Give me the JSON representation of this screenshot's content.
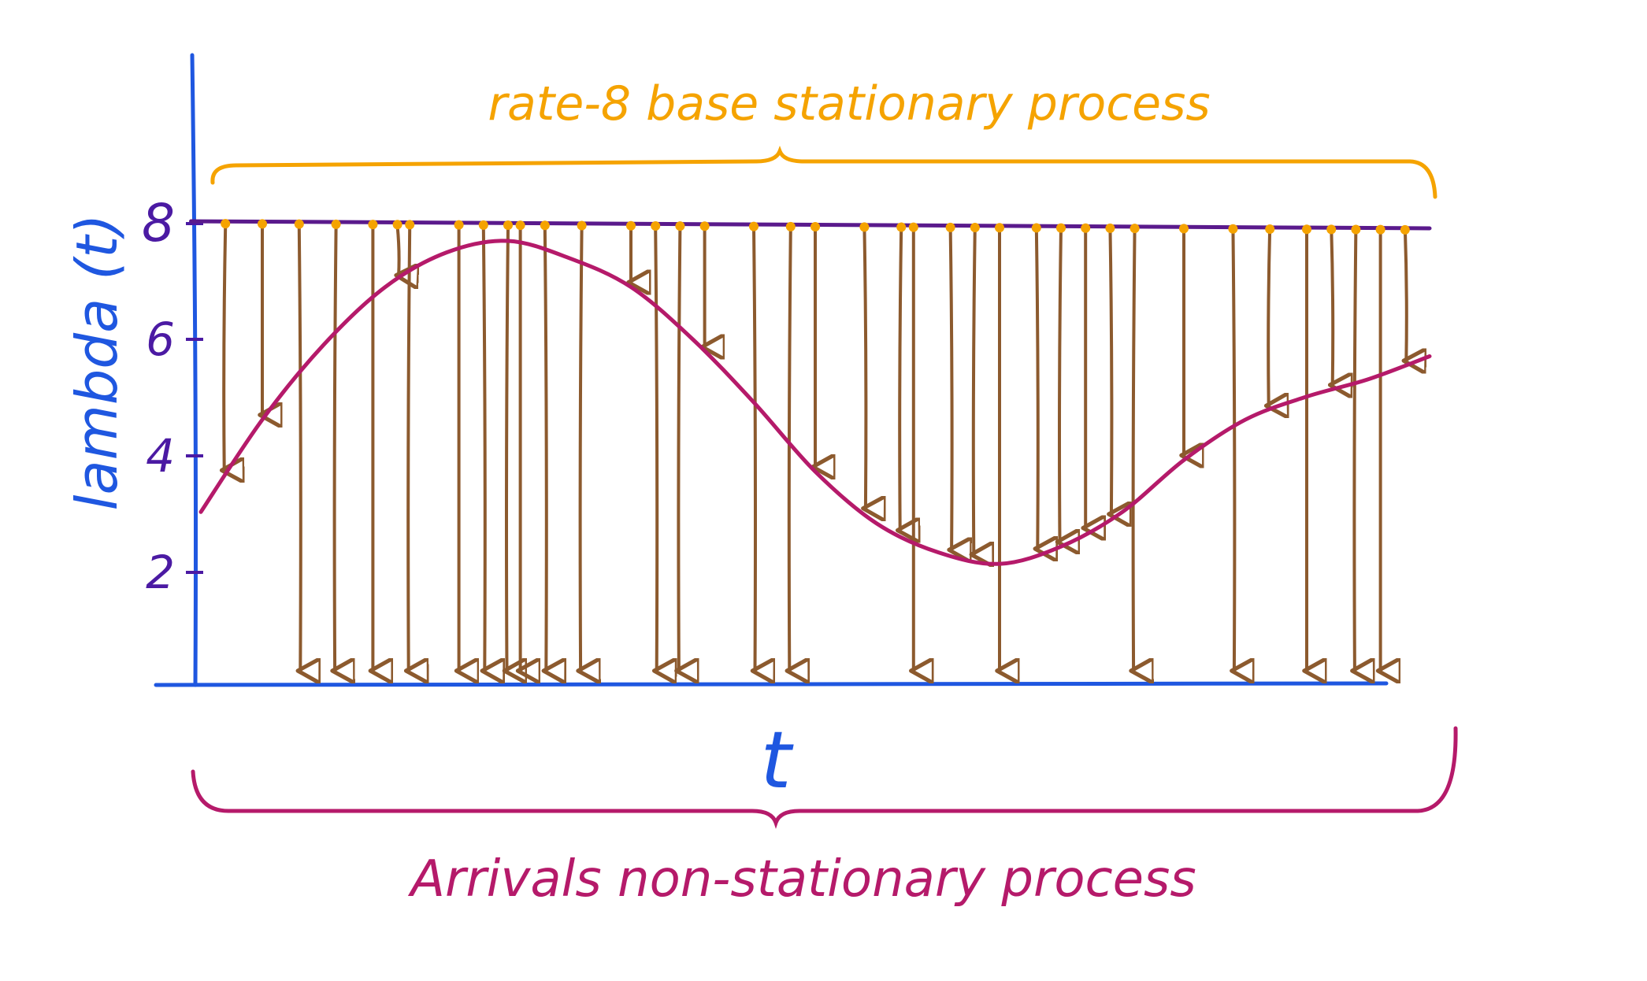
{
  "top_label": "rate-8 base stationary process",
  "bottom_label": "Arrivals non-stationary process",
  "y_axis_label": "lambda (t)",
  "x_axis_label": "t",
  "y_ticks": [
    "2",
    "4",
    "6",
    "8"
  ],
  "colors": {
    "axis": "#1f57e0",
    "tick_text": "#4b1aa3",
    "base_line": "#5a1a8c",
    "base_points": "#f5a300",
    "rate_curve": "#b51a6a",
    "arrows": "#8c5a2e",
    "top_label": "#f5a300",
    "bottom_label": "#b51a6a"
  },
  "chart_data": {
    "type": "line",
    "title": "",
    "xlabel": "t",
    "ylabel": "lambda (t)",
    "ylim": [
      0,
      9
    ],
    "y_ticks": [
      2,
      4,
      6,
      8
    ],
    "base_rate": 8,
    "intensity_curve": {
      "x": [
        0,
        0.05,
        0.1,
        0.15,
        0.2,
        0.25,
        0.3,
        0.35,
        0.4,
        0.45,
        0.5,
        0.55,
        0.6,
        0.65,
        0.7,
        0.75,
        0.8,
        0.85,
        0.9,
        0.95,
        1.0
      ],
      "y": [
        3.0,
        4.6,
        5.9,
        6.9,
        7.5,
        7.7,
        7.4,
        6.9,
        6.0,
        4.9,
        3.7,
        2.8,
        2.3,
        2.1,
        2.4,
        3.0,
        3.9,
        4.6,
        5.0,
        5.3,
        5.7
      ]
    },
    "candidates": [
      {
        "x": 0.02,
        "accepted": false
      },
      {
        "x": 0.05,
        "accepted": false
      },
      {
        "x": 0.08,
        "accepted": true
      },
      {
        "x": 0.11,
        "accepted": true
      },
      {
        "x": 0.14,
        "accepted": true
      },
      {
        "x": 0.16,
        "accepted": false
      },
      {
        "x": 0.17,
        "accepted": true
      },
      {
        "x": 0.21,
        "accepted": true
      },
      {
        "x": 0.23,
        "accepted": true
      },
      {
        "x": 0.25,
        "accepted": true
      },
      {
        "x": 0.26,
        "accepted": true
      },
      {
        "x": 0.28,
        "accepted": true
      },
      {
        "x": 0.31,
        "accepted": true
      },
      {
        "x": 0.35,
        "accepted": false
      },
      {
        "x": 0.37,
        "accepted": true
      },
      {
        "x": 0.39,
        "accepted": true
      },
      {
        "x": 0.41,
        "accepted": false
      },
      {
        "x": 0.45,
        "accepted": true
      },
      {
        "x": 0.48,
        "accepted": true
      },
      {
        "x": 0.5,
        "accepted": false
      },
      {
        "x": 0.54,
        "accepted": false
      },
      {
        "x": 0.57,
        "accepted": false
      },
      {
        "x": 0.58,
        "accepted": true
      },
      {
        "x": 0.61,
        "accepted": false
      },
      {
        "x": 0.63,
        "accepted": false
      },
      {
        "x": 0.65,
        "accepted": true
      },
      {
        "x": 0.68,
        "accepted": false
      },
      {
        "x": 0.7,
        "accepted": false
      },
      {
        "x": 0.72,
        "accepted": false
      },
      {
        "x": 0.74,
        "accepted": false
      },
      {
        "x": 0.76,
        "accepted": true
      },
      {
        "x": 0.8,
        "accepted": false
      },
      {
        "x": 0.84,
        "accepted": true
      },
      {
        "x": 0.87,
        "accepted": false
      },
      {
        "x": 0.9,
        "accepted": true
      },
      {
        "x": 0.92,
        "accepted": false
      },
      {
        "x": 0.94,
        "accepted": true
      },
      {
        "x": 0.96,
        "accepted": true
      },
      {
        "x": 0.98,
        "accepted": false
      }
    ]
  }
}
